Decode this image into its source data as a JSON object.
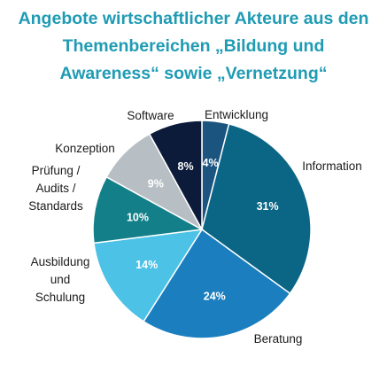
{
  "title_lines": [
    "Angebote wirtschaftlicher Akteure aus den",
    "Themenbereichen „Bildung und",
    "Awareness“ sowie „Vernetzung“"
  ],
  "chart_data": {
    "type": "pie",
    "title": "Angebote wirtschaftlicher Akteure aus den Themenbereichen „Bildung und Awareness“ sowie „Vernetzung“",
    "start": "top",
    "direction": "clockwise",
    "slices": [
      {
        "label": "Entwicklung",
        "label_lines": [
          "Entwicklung"
        ],
        "value": 4,
        "value_label": "4%",
        "color": "#1c5480"
      },
      {
        "label": "Information",
        "label_lines": [
          "Information"
        ],
        "value": 31,
        "value_label": "31%",
        "color": "#0b6585"
      },
      {
        "label": "Beratung",
        "label_lines": [
          "Beratung"
        ],
        "value": 24,
        "value_label": "24%",
        "color": "#1b7fbf"
      },
      {
        "label": "Ausbildung und Schulung",
        "label_lines": [
          "Ausbildung",
          "und",
          "Schulung"
        ],
        "value": 14,
        "value_label": "14%",
        "color": "#4bc2e6"
      },
      {
        "label": "Prüfung / Audits / Standards",
        "label_lines": [
          "Prüfung /",
          "Audits /",
          "Standards"
        ],
        "value": 10,
        "value_label": "10%",
        "color": "#138089"
      },
      {
        "label": "Konzeption",
        "label_lines": [
          "Konzeption"
        ],
        "value": 9,
        "value_label": "9%",
        "color": "#b8bfc4"
      },
      {
        "label": "Software",
        "label_lines": [
          "Software"
        ],
        "value": 8,
        "value_label": "8%",
        "color": "#0d1b3a"
      }
    ]
  }
}
